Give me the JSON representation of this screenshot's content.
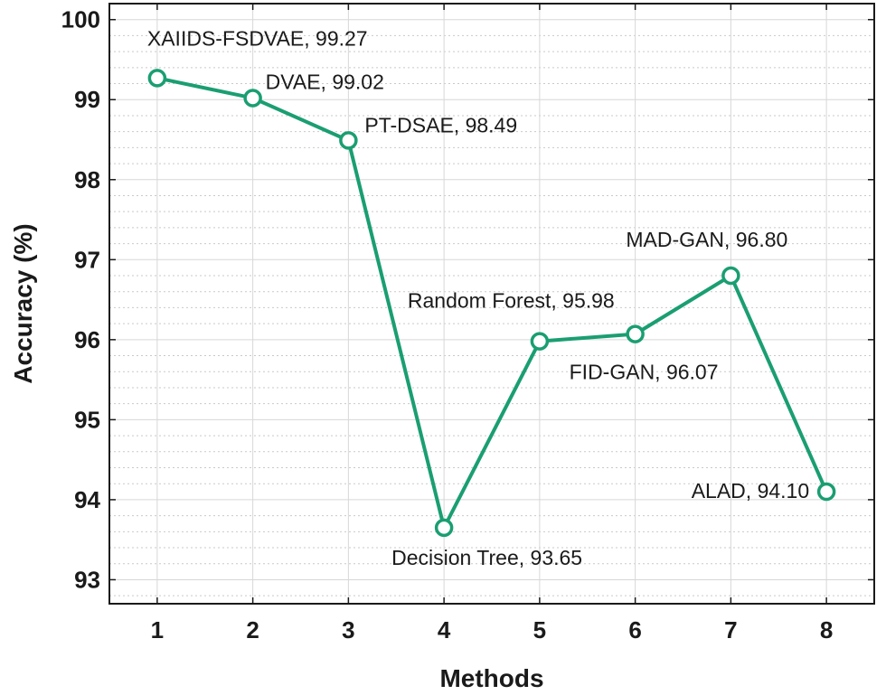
{
  "chart_data": {
    "type": "line",
    "xlabel": "Methods",
    "ylabel": "Accuracy (%)",
    "x": [
      1,
      2,
      3,
      4,
      5,
      6,
      7,
      8
    ],
    "y": [
      99.27,
      99.02,
      98.49,
      93.65,
      95.98,
      96.07,
      96.8,
      94.1
    ],
    "xlim": [
      0.5,
      8.5
    ],
    "ylim": [
      92.7,
      100.2
    ],
    "x_ticks": [
      "1",
      "2",
      "3",
      "4",
      "5",
      "6",
      "7",
      "8"
    ],
    "y_ticks": [
      "93",
      "94",
      "95",
      "96",
      "97",
      "98",
      "99",
      "100"
    ],
    "grid": true,
    "minor_grid": true,
    "line_color": "#1a9e72",
    "marker": "open-circle",
    "annotations": [
      "XAIIDS-FSDVAE, 99.27",
      "DVAE, 99.02",
      "PT-DSAE, 98.49",
      "Decision Tree, 93.65",
      "Random Forest, 95.98",
      "FID-GAN, 96.07",
      "MAD-GAN, 96.80",
      "ALAD, 94.10"
    ]
  }
}
